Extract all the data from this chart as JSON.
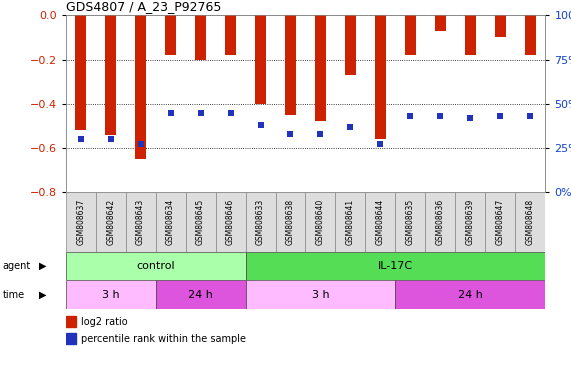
{
  "title": "GDS4807 / A_23_P92765",
  "samples": [
    "GSM808637",
    "GSM808642",
    "GSM808643",
    "GSM808634",
    "GSM808645",
    "GSM808646",
    "GSM808633",
    "GSM808638",
    "GSM808640",
    "GSM808641",
    "GSM808644",
    "GSM808635",
    "GSM808636",
    "GSM808639",
    "GSM808647",
    "GSM808648"
  ],
  "log2_ratios": [
    -0.52,
    -0.54,
    -0.65,
    -0.18,
    -0.2,
    -0.18,
    -0.4,
    -0.45,
    -0.48,
    -0.27,
    -0.56,
    -0.18,
    -0.07,
    -0.18,
    -0.1,
    -0.18
  ],
  "percentiles": [
    30,
    30,
    27,
    45,
    45,
    45,
    38,
    33,
    33,
    37,
    27,
    43,
    43,
    42,
    43,
    43
  ],
  "ylim": [
    -0.8,
    0.0
  ],
  "yticks_left": [
    0.0,
    -0.2,
    -0.4,
    -0.6,
    -0.8
  ],
  "yticks_right": [
    0,
    25,
    50,
    75,
    100
  ],
  "bar_color": "#cc2200",
  "dot_color": "#2233bb",
  "agent_groups": [
    {
      "label": "control",
      "start": 0,
      "end": 6,
      "color": "#aaffaa"
    },
    {
      "label": "IL-17C",
      "start": 6,
      "end": 16,
      "color": "#55dd55"
    }
  ],
  "time_groups": [
    {
      "label": "3 h",
      "start": 0,
      "end": 3,
      "color": "#ffbbff"
    },
    {
      "label": "24 h",
      "start": 3,
      "end": 6,
      "color": "#dd55dd"
    },
    {
      "label": "3 h",
      "start": 6,
      "end": 11,
      "color": "#ffbbff"
    },
    {
      "label": "24 h",
      "start": 11,
      "end": 16,
      "color": "#dd55dd"
    }
  ],
  "legend_red": "log2 ratio",
  "legend_blue": "percentile rank within the sample",
  "left_tick_color": "#cc2200",
  "right_tick_color": "#1144cc",
  "label_bg_color": "#dddddd",
  "bar_width": 0.35
}
